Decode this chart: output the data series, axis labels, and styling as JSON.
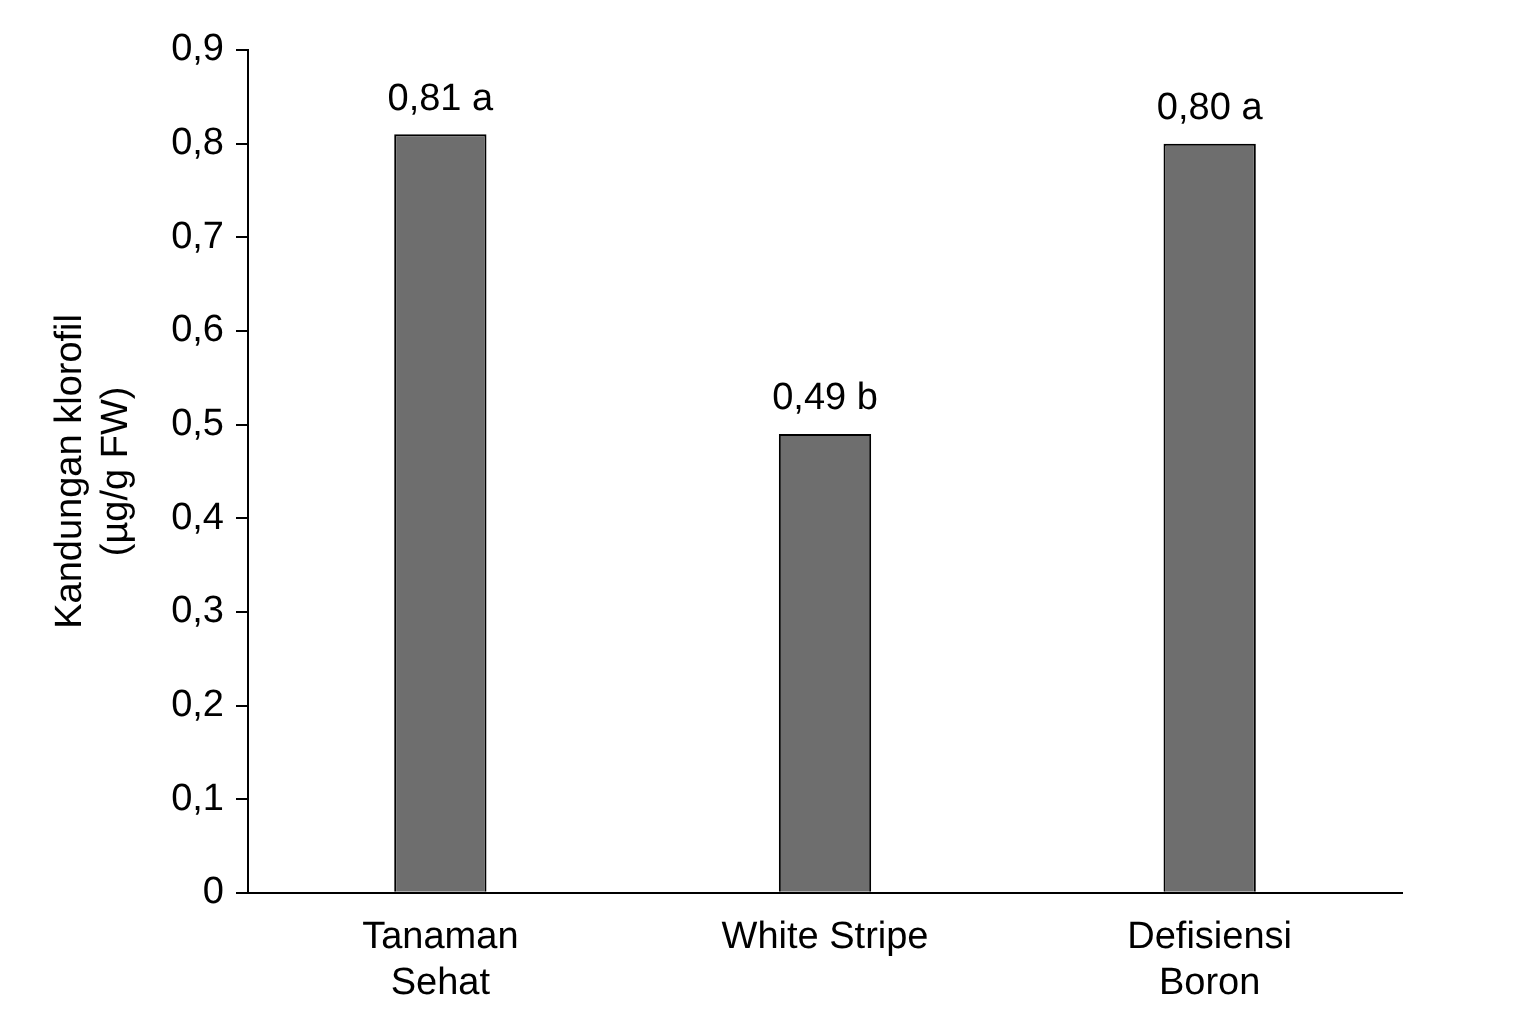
{
  "chart_data": {
    "type": "bar",
    "ylabel": "Kandungan klorofil\n(µg/g FW)",
    "categories": [
      "Tanaman\nSehat",
      "White Stripe",
      "Defisiensi\nBoron"
    ],
    "values": [
      0.81,
      0.49,
      0.8
    ],
    "value_labels": [
      "0,81 a",
      "0,49 b",
      "0,80 a"
    ],
    "color": "#6e6e6e",
    "ylim": [
      0,
      0.9
    ],
    "yticks": [
      0,
      {
        "value": 0.1,
        "label": "0,1"
      },
      {
        "value": 0.2,
        "label": "0,2"
      },
      {
        "value": 0.3,
        "label": "0,3"
      },
      {
        "value": 0.4,
        "label": "0,4"
      },
      {
        "value": 0.5,
        "label": "0,5"
      },
      {
        "value": 0.6,
        "label": "0,6"
      },
      {
        "value": 0.7,
        "label": "0,7"
      },
      {
        "value": 0.8,
        "label": "0,8"
      },
      {
        "value": 0.9,
        "label": "0,9"
      }
    ],
    "grid": false,
    "legend": false
  }
}
